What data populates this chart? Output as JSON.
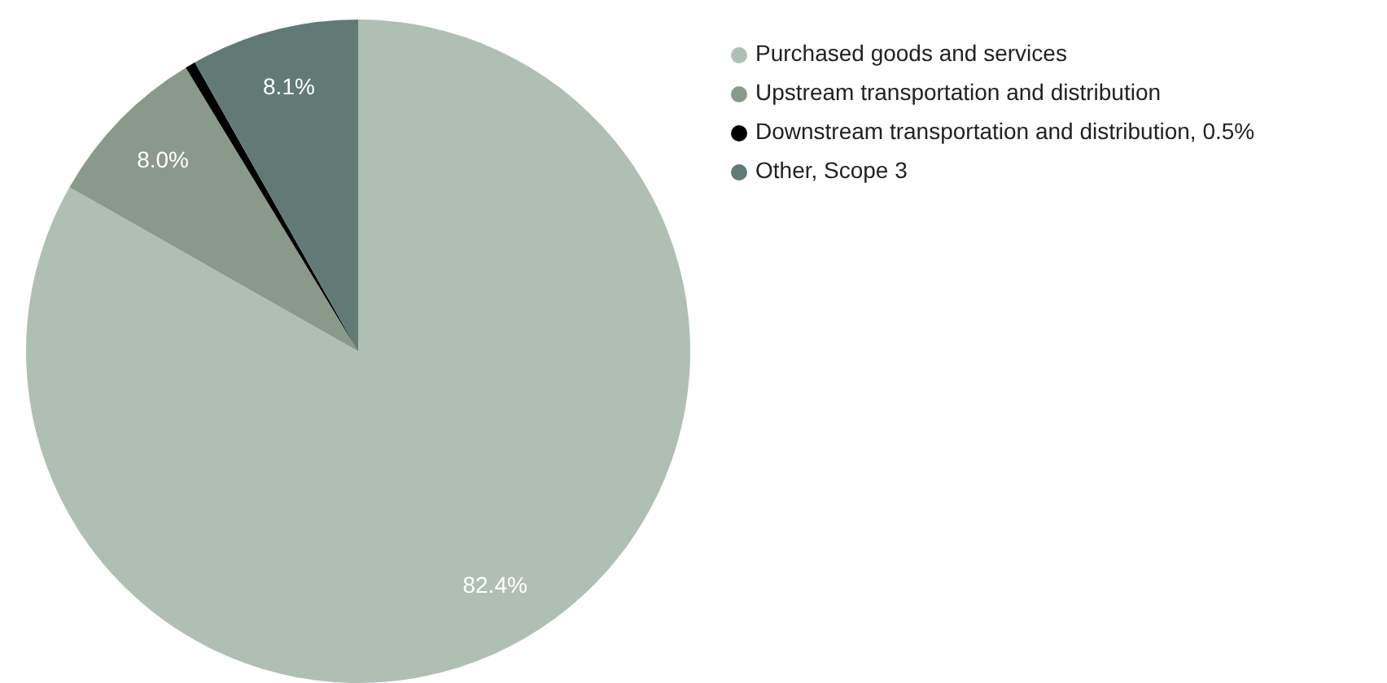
{
  "chart_data": {
    "type": "pie",
    "categories": [
      "Purchased goods and services",
      "Upstream transportation and distribution",
      "Downstream transportation and distribution, 0.5%",
      "Other, Scope 3"
    ],
    "values": [
      82.4,
      8.0,
      0.5,
      8.1
    ],
    "colors": [
      "#afbfb4",
      "#8a9a8a",
      "#000000",
      "#627a76"
    ],
    "value_labels": [
      "82.4%",
      "8.0%",
      null,
      "8.1%"
    ],
    "legend": "top right"
  }
}
